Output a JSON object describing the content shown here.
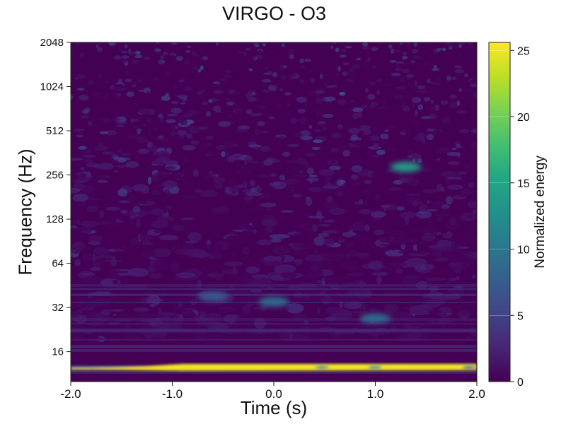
{
  "chart_data": {
    "type": "heatmap",
    "title": "VIRGO - O3",
    "xlabel": "Time (s)",
    "ylabel": "Frequency (Hz)",
    "colorbar_label": "Normalized energy",
    "x_ticks": [
      "-2.0",
      "-1.0",
      "0.0",
      "1.0",
      "2.0"
    ],
    "y_ticks": [
      "16",
      "32",
      "64",
      "128",
      "256",
      "512",
      "1024",
      "2048"
    ],
    "colorbar_ticks": [
      "0",
      "5",
      "10",
      "15",
      "20",
      "25"
    ],
    "xlim": [
      -2.0,
      2.0
    ],
    "ylim": [
      10,
      2048
    ],
    "y_scale": "log2",
    "colorbar_range": [
      0,
      25.6
    ],
    "colormap": "viridis",
    "grid": false,
    "features": [
      {
        "time_range": [
          -2.0,
          2.0
        ],
        "frequency": 12.5,
        "energy": 25
      },
      {
        "time": 0.0,
        "frequency": 35,
        "energy": 9
      },
      {
        "time": 1.0,
        "frequency": 27,
        "energy": 9
      },
      {
        "time": -0.6,
        "frequency": 38,
        "energy": 7
      },
      {
        "time": 1.3,
        "frequency": 290,
        "energy": 14
      }
    ]
  }
}
